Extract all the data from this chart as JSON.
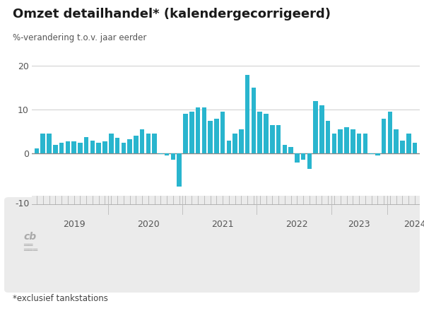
{
  "title": "Omzet detailhandel* (kalendergecorrigeerd)",
  "subtitle": "%-verandering t.o.v. jaar eerder",
  "footnote": "*exclusief tankstations",
  "bar_color": "#29B5CE",
  "zero_line_color": "#888888",
  "grid_color": "#CCCCCC",
  "background_color": "#FFFFFF",
  "footer_bg_color": "#EBEBEB",
  "values": [
    1.2,
    4.5,
    4.5,
    2.0,
    2.5,
    2.8,
    2.8,
    2.5,
    3.8,
    3.0,
    2.5,
    2.8,
    4.5,
    3.5,
    2.5,
    3.2,
    4.0,
    5.5,
    4.5,
    4.5,
    -0.2,
    -0.5,
    -1.5,
    -7.5,
    9.0,
    9.5,
    10.5,
    10.5,
    7.5,
    8.0,
    9.5,
    3.0,
    4.5,
    5.5,
    18.0,
    15.0,
    9.5,
    9.0,
    6.5,
    6.5,
    2.0,
    1.5,
    -2.0,
    -1.5,
    -3.5,
    12.0,
    11.0,
    7.5,
    4.5,
    5.5,
    6.0,
    5.5,
    4.5,
    4.5,
    -0.2,
    -0.5,
    8.0,
    9.5,
    5.5,
    3.0,
    4.5,
    2.5
  ],
  "year_labels": [
    "2019",
    "2020",
    "2021",
    "2022",
    "2023",
    "2024"
  ],
  "year_positions": [
    6,
    18,
    30,
    42,
    52,
    61
  ],
  "title_fontsize": 13,
  "subtitle_fontsize": 8.5,
  "footnote_fontsize": 8.5,
  "tick_fontsize": 9,
  "year_fontsize": 9
}
